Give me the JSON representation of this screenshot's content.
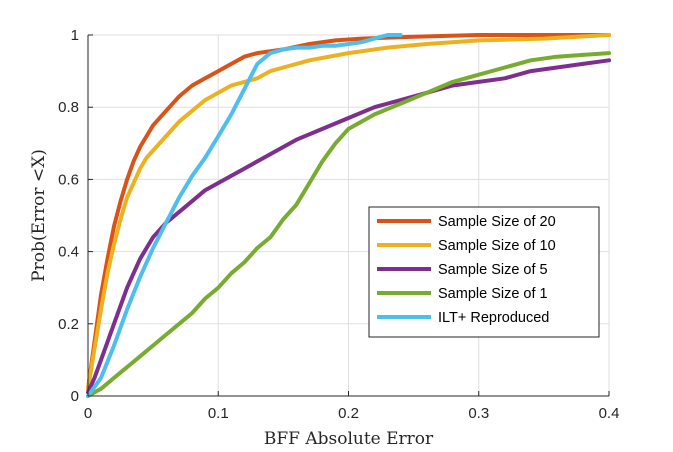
{
  "chart_data": {
    "type": "line",
    "xlabel": "BFF Absolute Error",
    "ylabel": "Prob(Error <X)",
    "xlim": [
      0,
      0.4
    ],
    "ylim": [
      0,
      1
    ],
    "xticks": [
      0,
      0.1,
      0.2,
      0.3,
      0.4
    ],
    "xtick_labels": [
      "0",
      "0.1",
      "0.2",
      "0.3",
      "0.4"
    ],
    "yticks": [
      0,
      0.2,
      0.4,
      0.6,
      0.8,
      1
    ],
    "ytick_labels": [
      "0",
      "0.2",
      "0.4",
      "0.6",
      "0.8",
      "1"
    ],
    "grid": true,
    "legend_position": "right",
    "series": [
      {
        "name": "Sample Size of 20",
        "color": "#D95319",
        "x": [
          0,
          0.005,
          0.01,
          0.015,
          0.02,
          0.025,
          0.03,
          0.035,
          0.04,
          0.045,
          0.05,
          0.06,
          0.07,
          0.08,
          0.09,
          0.1,
          0.11,
          0.12,
          0.13,
          0.14,
          0.15,
          0.17,
          0.19,
          0.21,
          0.25,
          0.3,
          0.35,
          0.4
        ],
        "y": [
          0.02,
          0.15,
          0.28,
          0.38,
          0.47,
          0.54,
          0.6,
          0.65,
          0.69,
          0.72,
          0.75,
          0.79,
          0.83,
          0.86,
          0.88,
          0.9,
          0.92,
          0.94,
          0.95,
          0.955,
          0.96,
          0.975,
          0.985,
          0.99,
          0.995,
          1.0,
          1.0,
          1.0
        ]
      },
      {
        "name": "Sample Size of 10",
        "color": "#EDB120",
        "x": [
          0,
          0.005,
          0.01,
          0.015,
          0.02,
          0.025,
          0.03,
          0.035,
          0.04,
          0.045,
          0.05,
          0.06,
          0.07,
          0.08,
          0.09,
          0.1,
          0.11,
          0.12,
          0.13,
          0.14,
          0.15,
          0.17,
          0.2,
          0.23,
          0.26,
          0.3,
          0.35,
          0.4
        ],
        "y": [
          0.02,
          0.13,
          0.24,
          0.34,
          0.42,
          0.49,
          0.55,
          0.59,
          0.63,
          0.66,
          0.68,
          0.72,
          0.76,
          0.79,
          0.82,
          0.84,
          0.86,
          0.87,
          0.88,
          0.9,
          0.91,
          0.93,
          0.95,
          0.965,
          0.975,
          0.985,
          0.99,
          1.0
        ]
      },
      {
        "name": "Sample Size of 5",
        "color": "#7E2F8E",
        "x": [
          0,
          0.005,
          0.01,
          0.015,
          0.02,
          0.03,
          0.04,
          0.05,
          0.06,
          0.07,
          0.08,
          0.09,
          0.1,
          0.12,
          0.14,
          0.16,
          0.18,
          0.2,
          0.22,
          0.24,
          0.26,
          0.28,
          0.3,
          0.32,
          0.34,
          0.36,
          0.38,
          0.4
        ],
        "y": [
          0.01,
          0.05,
          0.1,
          0.15,
          0.2,
          0.3,
          0.38,
          0.44,
          0.48,
          0.51,
          0.54,
          0.57,
          0.59,
          0.63,
          0.67,
          0.71,
          0.74,
          0.77,
          0.8,
          0.82,
          0.84,
          0.86,
          0.87,
          0.88,
          0.9,
          0.91,
          0.92,
          0.93
        ]
      },
      {
        "name": "Sample Size of 1",
        "color": "#77AC30",
        "x": [
          0,
          0.01,
          0.02,
          0.03,
          0.04,
          0.05,
          0.06,
          0.07,
          0.08,
          0.09,
          0.1,
          0.11,
          0.12,
          0.13,
          0.14,
          0.15,
          0.16,
          0.17,
          0.18,
          0.19,
          0.2,
          0.22,
          0.24,
          0.26,
          0.28,
          0.3,
          0.32,
          0.34,
          0.36,
          0.38,
          0.4
        ],
        "y": [
          0.0,
          0.02,
          0.05,
          0.08,
          0.11,
          0.14,
          0.17,
          0.2,
          0.23,
          0.27,
          0.3,
          0.34,
          0.37,
          0.41,
          0.44,
          0.49,
          0.53,
          0.59,
          0.65,
          0.7,
          0.74,
          0.78,
          0.81,
          0.84,
          0.87,
          0.89,
          0.91,
          0.93,
          0.94,
          0.945,
          0.95
        ]
      },
      {
        "name": "ILT+ Reproduced",
        "color": "#4DBEEE",
        "x": [
          0,
          0.01,
          0.02,
          0.03,
          0.04,
          0.05,
          0.06,
          0.07,
          0.08,
          0.09,
          0.1,
          0.11,
          0.12,
          0.13,
          0.14,
          0.15,
          0.16,
          0.17,
          0.18,
          0.19,
          0.2,
          0.21,
          0.22,
          0.23,
          0.24
        ],
        "y": [
          0.0,
          0.05,
          0.14,
          0.24,
          0.33,
          0.41,
          0.48,
          0.55,
          0.61,
          0.66,
          0.72,
          0.78,
          0.85,
          0.92,
          0.95,
          0.96,
          0.965,
          0.965,
          0.97,
          0.97,
          0.975,
          0.98,
          0.99,
          1.0,
          1.0
        ]
      }
    ]
  }
}
